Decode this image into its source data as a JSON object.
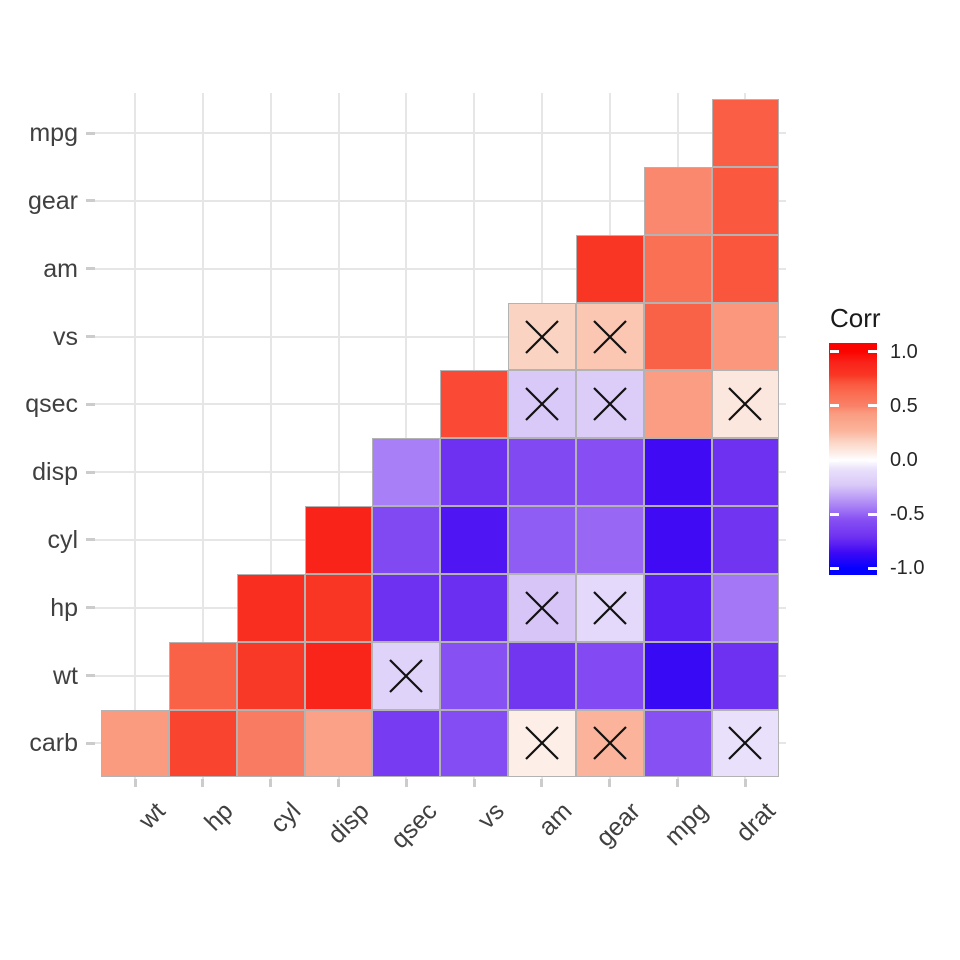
{
  "chart_data": {
    "type": "heatmap",
    "subtype": "correlation-matrix-lower-triangle",
    "title": "",
    "x_categories": [
      "wt",
      "hp",
      "cyl",
      "disp",
      "qsec",
      "vs",
      "am",
      "gear",
      "mpg",
      "drat"
    ],
    "y_categories": [
      "mpg",
      "gear",
      "am",
      "vs",
      "qsec",
      "disp",
      "cyl",
      "hp",
      "wt",
      "carb"
    ],
    "values": [
      [
        null,
        null,
        null,
        null,
        null,
        null,
        null,
        null,
        null,
        0.68
      ],
      [
        null,
        null,
        null,
        null,
        null,
        null,
        null,
        null,
        0.48,
        0.7
      ],
      [
        null,
        null,
        null,
        null,
        null,
        null,
        null,
        0.79,
        0.6,
        0.71
      ],
      [
        null,
        null,
        null,
        null,
        null,
        null,
        0.17,
        0.21,
        0.66,
        0.44
      ],
      [
        null,
        null,
        null,
        null,
        null,
        0.74,
        -0.23,
        -0.21,
        0.42,
        0.09
      ],
      [
        null,
        null,
        null,
        null,
        -0.43,
        -0.71,
        -0.59,
        -0.56,
        -0.85,
        -0.71
      ],
      [
        null,
        null,
        null,
        0.9,
        -0.59,
        -0.81,
        -0.52,
        -0.49,
        -0.85,
        -0.7
      ],
      [
        null,
        null,
        0.83,
        0.79,
        -0.71,
        -0.72,
        -0.24,
        -0.13,
        -0.78,
        -0.45
      ],
      [
        null,
        0.66,
        0.78,
        0.89,
        -0.17,
        -0.55,
        -0.69,
        -0.58,
        -0.87,
        -0.71
      ],
      [
        0.43,
        0.75,
        0.53,
        0.39,
        -0.66,
        -0.57,
        0.06,
        0.27,
        -0.55,
        -0.09
      ]
    ],
    "cross_marks": [
      [
        3,
        6
      ],
      [
        3,
        7
      ],
      [
        4,
        6
      ],
      [
        4,
        7
      ],
      [
        4,
        9
      ],
      [
        7,
        6
      ],
      [
        7,
        7
      ],
      [
        8,
        4
      ],
      [
        9,
        6
      ],
      [
        9,
        7
      ],
      [
        9,
        9
      ]
    ],
    "cross_marks_meaning": "not significant",
    "legend": {
      "title": "Corr",
      "position": "right",
      "tick_labels": [
        "1.0",
        "0.5",
        "0.0",
        "-0.5",
        "-1.0"
      ],
      "tick_values": [
        1,
        0.5,
        0,
        -0.5,
        -1
      ],
      "range": [
        -1,
        1
      ]
    },
    "color_scale": {
      "low": "#0000FF",
      "mid": "#FFFFFF",
      "high": "#FF0000",
      "stops": [
        {
          "v": 1.0,
          "c": "#FB0400"
        },
        {
          "v": 0.9,
          "c": "#F9231A"
        },
        {
          "v": 0.79,
          "c": "#F93524"
        },
        {
          "v": 0.7,
          "c": "#FA5940"
        },
        {
          "v": 0.6,
          "c": "#FA7054"
        },
        {
          "v": 0.5,
          "c": "#F98168"
        },
        {
          "v": 0.43,
          "c": "#FA9B80"
        },
        {
          "v": 0.27,
          "c": "#FBB49B"
        },
        {
          "v": 0.17,
          "c": "#FBD3C3"
        },
        {
          "v": 0.06,
          "c": "#FDEFE8"
        },
        {
          "v": 0.0,
          "c": "#FFFFFF"
        },
        {
          "v": -0.09,
          "c": "#E9E0FB"
        },
        {
          "v": -0.23,
          "c": "#D9C9F8"
        },
        {
          "v": -0.43,
          "c": "#A87FF6"
        },
        {
          "v": -0.55,
          "c": "#8750F3"
        },
        {
          "v": -0.7,
          "c": "#7134F1"
        },
        {
          "v": -0.78,
          "c": "#5A1FF3"
        },
        {
          "v": -0.85,
          "c": "#400AF4"
        },
        {
          "v": -1.0,
          "c": "#0501FE"
        }
      ]
    },
    "grid": true
  },
  "colors": {
    "background": "#FFFFFF",
    "gridline": "#E6E6E6",
    "axis_tick": "#CCCCCC",
    "axis_text": "#404040",
    "legend_text": "#262626",
    "cell_border": "#B3B3B3",
    "cross": "#111111"
  }
}
